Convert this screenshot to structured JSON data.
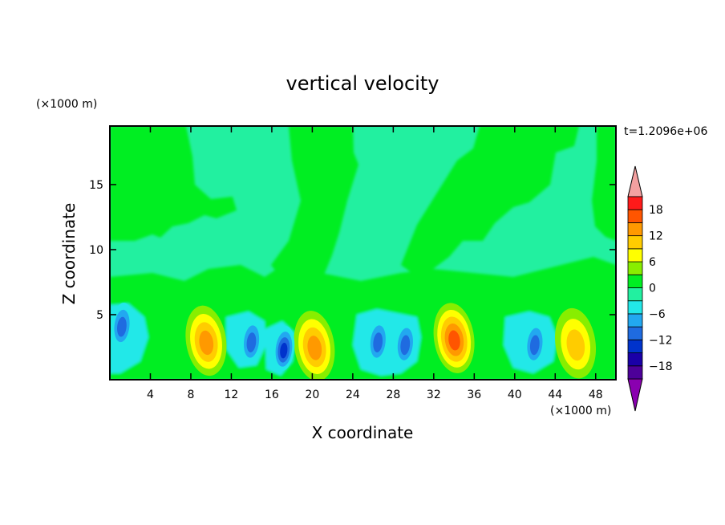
{
  "chart_data": {
    "type": "heatmap",
    "title": "vertical velocity",
    "xlabel": "X coordinate",
    "ylabel": "Z coordinate",
    "x_unit": "(×1000 m)",
    "y_unit": "(×1000 m)",
    "time_label": "t=1.2096e+06",
    "xlim": [
      0,
      50
    ],
    "ylim": [
      0,
      19.5
    ],
    "x_ticks": [
      4,
      8,
      12,
      16,
      20,
      24,
      28,
      32,
      36,
      40,
      44,
      48
    ],
    "x_tick_labels": [
      "4",
      "8",
      "12",
      "16",
      "20",
      "24",
      "28",
      "32",
      "36",
      "40",
      "44",
      "48"
    ],
    "y_ticks": [
      5,
      10,
      15
    ],
    "y_tick_labels": [
      "5",
      "10",
      "15"
    ],
    "colorbar": {
      "levels": [
        -21,
        -18,
        -15,
        -12,
        -9,
        -6,
        -3,
        0,
        3,
        6,
        9,
        12,
        15,
        18,
        21
      ],
      "tick_values": [
        -18,
        -12,
        -6,
        0,
        6,
        12,
        18
      ],
      "tick_labels": [
        "−18",
        "−12",
        "−6",
        "0",
        "6",
        "12",
        "18"
      ],
      "colors": [
        "#8a00b0",
        "#4d0099",
        "#1a00a8",
        "#0033cc",
        "#1f6be0",
        "#22a8f0",
        "#22e8e8",
        "#22f0a0",
        "#00ee22",
        "#88ee00",
        "#ffff00",
        "#ffcc00",
        "#ff9900",
        "#ff5500",
        "#ff1a1a",
        "#f4a0a0"
      ],
      "extend": "both"
    },
    "cells": [
      {
        "x": 9.5,
        "z": 3.0,
        "w": 13
      },
      {
        "x": 20.2,
        "z": 2.6,
        "w": 14
      },
      {
        "x": 34.0,
        "z": 3.2,
        "w": 15
      },
      {
        "x": 46.0,
        "z": 2.8,
        "w": 10
      },
      {
        "x": 1.2,
        "z": 4.2,
        "w": -10
      },
      {
        "x": 14.0,
        "z": 3.0,
        "w": -10
      },
      {
        "x": 17.2,
        "z": 2.4,
        "w": -12
      },
      {
        "x": 26.5,
        "z": 3.0,
        "w": -10
      },
      {
        "x": 29.2,
        "z": 2.8,
        "w": -11
      },
      {
        "x": 42.0,
        "z": 2.8,
        "w": -11
      }
    ]
  }
}
